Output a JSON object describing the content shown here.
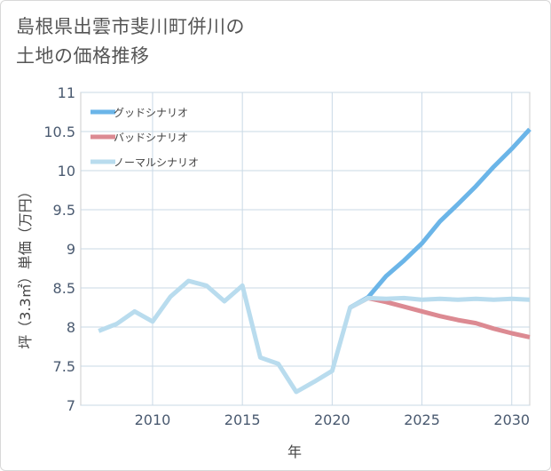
{
  "chart_data": {
    "type": "line",
    "title_lines": [
      "島根県出雲市斐川町併川の",
      "土地の価格推移"
    ],
    "xlabel": "年",
    "ylabel": "坪（3.3㎡）単価（万円）",
    "xlim": [
      2006,
      2031
    ],
    "ylim": [
      7,
      11
    ],
    "x_ticks": [
      2010,
      2015,
      2020,
      2025,
      2030
    ],
    "y_ticks": [
      7,
      7.5,
      8,
      8.5,
      9,
      9.5,
      10,
      10.5,
      11
    ],
    "y_tick_labels": [
      "7",
      "7.5",
      "8",
      "8.5",
      "9",
      "9.5",
      "10",
      "10.5",
      "11"
    ],
    "grid": true,
    "legend_position": "top-left",
    "series": [
      {
        "name": "グッドシナリオ",
        "color": "#6bb5e8",
        "x": [
          2021,
          2022,
          2023,
          2024,
          2025,
          2026,
          2027,
          2028,
          2029,
          2030,
          2031
        ],
        "values": [
          8.25,
          8.38,
          8.65,
          8.85,
          9.07,
          9.35,
          9.57,
          9.8,
          10.05,
          10.28,
          10.53
        ]
      },
      {
        "name": "バッドシナリオ",
        "color": "#dc8a92",
        "x": [
          2021,
          2022,
          2023,
          2024,
          2025,
          2026,
          2027,
          2028,
          2029,
          2030,
          2031
        ],
        "values": [
          8.25,
          8.37,
          8.32,
          8.26,
          8.2,
          8.14,
          8.09,
          8.05,
          7.98,
          7.92,
          7.87
        ]
      },
      {
        "name": "ノーマルシナリオ",
        "color": "#b9dcee",
        "x": [
          2007,
          2008,
          2009,
          2010,
          2011,
          2012,
          2013,
          2014,
          2015,
          2016,
          2017,
          2018,
          2019,
          2020,
          2021,
          2022,
          2023,
          2024,
          2025,
          2026,
          2027,
          2028,
          2029,
          2030,
          2031
        ],
        "values": [
          7.95,
          8.04,
          8.2,
          8.07,
          8.39,
          8.59,
          8.53,
          8.33,
          8.53,
          7.61,
          7.53,
          7.17,
          7.3,
          7.44,
          8.25,
          8.37,
          8.36,
          8.37,
          8.35,
          8.36,
          8.35,
          8.36,
          8.35,
          8.36,
          8.35
        ]
      }
    ]
  }
}
